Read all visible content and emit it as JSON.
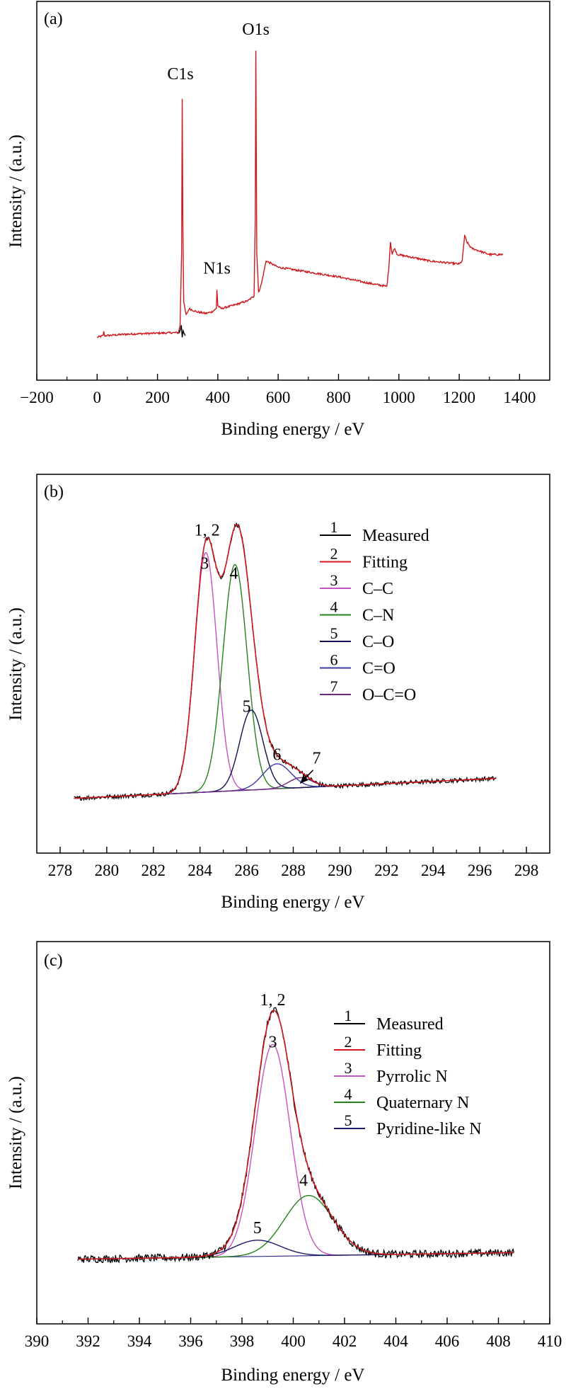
{
  "chart_data": [
    {
      "type": "line",
      "panel_label": "(a)",
      "xlabel": "Binding energy / eV",
      "ylabel": "Intensity / (a.u.)",
      "xlim": [
        -200,
        1500
      ],
      "xticks": [
        "−200",
        "0",
        "200",
        "400",
        "600",
        "800",
        "1000",
        "1200",
        "1400"
      ],
      "xtick_values": [
        -200,
        0,
        200,
        400,
        600,
        800,
        1000,
        1200,
        1400
      ],
      "ylim": [
        0,
        100
      ],
      "series": [
        {
          "color": "#d0181c",
          "points": [
            [
              0,
              3
            ],
            [
              20,
              3.5
            ],
            [
              22,
              5
            ],
            [
              24,
              3.5
            ],
            [
              100,
              4
            ],
            [
              200,
              4.3
            ],
            [
              270,
              4.5
            ],
            [
              275,
              7
            ],
            [
              280,
              30
            ],
            [
              282,
              78
            ],
            [
              284,
              40
            ],
            [
              287,
              14
            ],
            [
              295,
              10
            ],
            [
              305,
              12
            ],
            [
              330,
              11
            ],
            [
              360,
              10.5
            ],
            [
              380,
              11
            ],
            [
              395,
              12
            ],
            [
              397,
              18
            ],
            [
              400,
              13
            ],
            [
              410,
              12
            ],
            [
              450,
              13
            ],
            [
              500,
              14.5
            ],
            [
              520,
              16
            ],
            [
              524,
              40
            ],
            [
              526,
              93
            ],
            [
              529,
              30
            ],
            [
              535,
              17
            ],
            [
              545,
              20
            ],
            [
              560,
              27
            ],
            [
              600,
              25
            ],
            [
              700,
              23.5
            ],
            [
              800,
              22
            ],
            [
              900,
              20
            ],
            [
              960,
              19
            ],
            [
              966,
              24
            ],
            [
              972,
              33
            ],
            [
              978,
              29
            ],
            [
              985,
              31
            ],
            [
              995,
              29
            ],
            [
              1050,
              28
            ],
            [
              1100,
              27
            ],
            [
              1200,
              26
            ],
            [
              1210,
              27
            ],
            [
              1218,
              35
            ],
            [
              1225,
              33
            ],
            [
              1240,
              31
            ],
            [
              1300,
              29
            ],
            [
              1345,
              29
            ]
          ]
        },
        {
          "color": "#000000",
          "points": [
            [
              272,
              4.3
            ],
            [
              276,
              5.5
            ],
            [
              279,
              6.8
            ],
            [
              282,
              3.2
            ],
            [
              285,
              5
            ],
            [
              288,
              4.2
            ],
            [
              292,
              3.5
            ]
          ]
        }
      ],
      "annotations": [
        {
          "text": "C1s",
          "x": 276,
          "y": 84
        },
        {
          "text": "N1s",
          "x": 397,
          "y": 23
        },
        {
          "text": "O1s",
          "x": 526,
          "y": 98
        }
      ]
    },
    {
      "type": "line",
      "panel_label": "(b)",
      "xlabel": "Binding energy / eV",
      "ylabel": "Intensity / (a.u.)",
      "xlim": [
        277,
        299
      ],
      "xticks": [
        "278",
        "280",
        "282",
        "284",
        "286",
        "288",
        "290",
        "292",
        "294",
        "296",
        "298"
      ],
      "xtick_values": [
        278,
        280,
        282,
        284,
        286,
        288,
        290,
        292,
        294,
        296,
        298
      ],
      "ylim": [
        0,
        100
      ],
      "baseline": {
        "x0": 278.6,
        "y0": 9,
        "x1": 296.7,
        "y1": 15
      },
      "components": [
        {
          "label": "3",
          "name": "C–C",
          "color": "#c553c3",
          "center": 284.25,
          "amp": 72,
          "sigma": 0.48
        },
        {
          "label": "4",
          "name": "C–N",
          "color": "#26821c",
          "center": 285.5,
          "amp": 68,
          "sigma": 0.52
        },
        {
          "label": "5",
          "name": "C–O",
          "color": "#11114f",
          "center": 286.2,
          "amp": 24,
          "sigma": 0.5
        },
        {
          "label": "6",
          "name": "C=O",
          "color": "#3a3aa5",
          "center": 287.3,
          "amp": 7.5,
          "sigma": 0.6
        },
        {
          "label": "7",
          "name": "O–C=O",
          "color": "#6a2a84",
          "center": 288.3,
          "amp": 3,
          "sigma": 0.5
        }
      ],
      "legend": [
        {
          "label": "1",
          "name": "Measured",
          "color": "#000000"
        },
        {
          "label": "2",
          "name": "Fitting",
          "color": "#d0181c"
        },
        {
          "label": "3",
          "name": "C–C",
          "color": "#c553c3"
        },
        {
          "label": "4",
          "name": "C–N",
          "color": "#26821c"
        },
        {
          "label": "5",
          "name": "C–O",
          "color": "#11114f"
        },
        {
          "label": "6",
          "name": "C=O",
          "color": "#3a3aa5"
        },
        {
          "label": "7",
          "name": "O–C=O",
          "color": "#6a2a84"
        }
      ],
      "annotations": [
        {
          "text": "1, 2",
          "x": 284.3,
          "y": 88
        },
        {
          "text": "3",
          "x": 284.2,
          "y": 78
        },
        {
          "text": "4",
          "x": 285.45,
          "y": 75
        },
        {
          "text": "5",
          "x": 286.0,
          "y": 35
        },
        {
          "text": "6",
          "x": 287.3,
          "y": 20.5
        },
        {
          "text": "7",
          "x": 289.0,
          "y": 19.5
        }
      ],
      "legend_position": "top-right",
      "fitting_color": "#d0181c",
      "measured_color": "#000000"
    },
    {
      "type": "line",
      "panel_label": "(c)",
      "xlabel": "Binding energy / eV",
      "ylabel": "Intensity / (a.u.)",
      "xlim": [
        390,
        410
      ],
      "xticks": [
        "390",
        "392",
        "394",
        "396",
        "398",
        "400",
        "402",
        "404",
        "406",
        "408",
        "410"
      ],
      "xtick_values": [
        390,
        392,
        394,
        396,
        398,
        400,
        402,
        404,
        406,
        408,
        410
      ],
      "ylim": [
        0,
        100
      ],
      "baseline": {
        "x0": 391.6,
        "y0": 9,
        "x1": 408.6,
        "y1": 11
      },
      "components": [
        {
          "label": "3",
          "name": "Pyrrolic N",
          "color": "#c553c3",
          "center": 399.2,
          "amp": 65,
          "sigma": 0.68
        },
        {
          "label": "4",
          "name": "Quaternary N",
          "color": "#26821c",
          "center": 400.6,
          "amp": 18.5,
          "sigma": 0.95
        },
        {
          "label": "5",
          "name": "Pyridine-like N",
          "color": "#1c1c6a",
          "center": 398.6,
          "amp": 5,
          "sigma": 0.9
        }
      ],
      "legend": [
        {
          "label": "1",
          "name": "Measured",
          "color": "#000000"
        },
        {
          "label": "2",
          "name": "Fitting",
          "color": "#d0181c"
        },
        {
          "label": "3",
          "name": "Pyrrolic N",
          "color": "#c553c3"
        },
        {
          "label": "4",
          "name": "Quaternary N",
          "color": "#26821c"
        },
        {
          "label": "5",
          "name": "Pyridine-like N",
          "color": "#1c1c6a"
        }
      ],
      "annotations": [
        {
          "text": "1, 2",
          "x": 399.2,
          "y": 87
        },
        {
          "text": "3",
          "x": 399.2,
          "y": 74
        },
        {
          "text": "4",
          "x": 400.4,
          "y": 31.5
        },
        {
          "text": "5",
          "x": 398.6,
          "y": 17
        }
      ],
      "legend_position": "top-right",
      "fitting_color": "#d0181c",
      "measured_color": "#000000"
    }
  ]
}
